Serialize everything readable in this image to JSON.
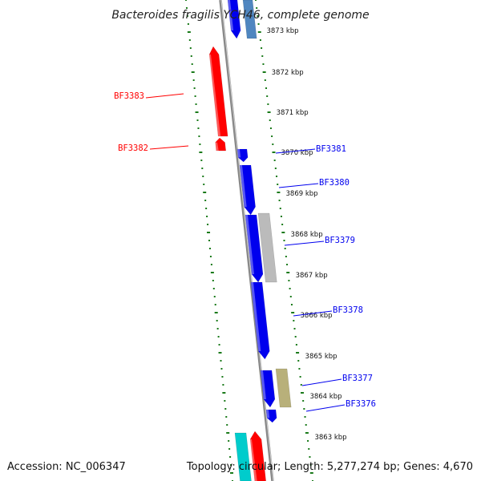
{
  "title": "Bacteroides fragilis YCH46, complete genome",
  "accession_text": "Accession: NC_006347",
  "summary_text": "Topology: circular; Length: 5,277,274 bp; Genes: 4,670",
  "colors": {
    "forward_strand": "#0000ee",
    "reverse_strand": "#ff0000",
    "ticks": "#1a7a1a",
    "backbone": "#888888",
    "rna": "#00cccc",
    "steel": "#4f86c0",
    "pseudo_gray": "#bbbbbb",
    "pseudo_olive": "#b8b07a"
  },
  "kbp_ticks": [
    {
      "label": "3873 kbp"
    },
    {
      "label": "3872 kbp"
    },
    {
      "label": "3871 kbp"
    },
    {
      "label": "3870 kbp"
    },
    {
      "label": "3869 kbp"
    },
    {
      "label": "3868 kbp"
    },
    {
      "label": "3867 kbp"
    },
    {
      "label": "3866 kbp"
    },
    {
      "label": "3865 kbp"
    },
    {
      "label": "3864 kbp"
    },
    {
      "label": "3863 kbp"
    }
  ],
  "gene_labels": [
    {
      "name": "BF3383",
      "strand": "reverse"
    },
    {
      "name": "BF3382",
      "strand": "reverse"
    },
    {
      "name": "BF3381",
      "strand": "forward"
    },
    {
      "name": "BF3380",
      "strand": "forward"
    },
    {
      "name": "BF3379",
      "strand": "forward"
    },
    {
      "name": "BF3378",
      "strand": "forward"
    },
    {
      "name": "BF3377",
      "strand": "forward"
    },
    {
      "name": "BF3376",
      "strand": "forward"
    }
  ]
}
